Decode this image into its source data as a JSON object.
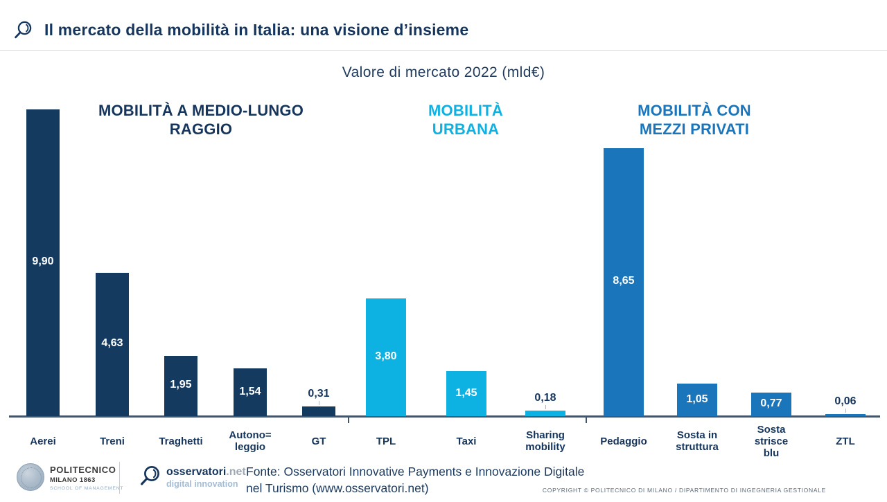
{
  "header": {
    "title": "Il mercato della mobilità in Italia: una visione d’insieme"
  },
  "subtitle": "Valore di mercato 2022 (mld€)",
  "colors": {
    "navy": "#143A5F",
    "cyan": "#0DB2E2",
    "blue": "#1B75BB",
    "title_text": "#16355C",
    "axis": "#44546A"
  },
  "chart_data": {
    "type": "bar",
    "title": "Valore di mercato 2022 (mld€)",
    "unit": "mld€",
    "decimal_separator": ",",
    "ylim": [
      0,
      10
    ],
    "grid": false,
    "groups": [
      {
        "label": "MOBILITÀ A MEDIO-LUNGO RAGGIO",
        "display_label": "MOBILITÀ A MEDIO-LUNGO\nRAGGIO",
        "header_color": "#16355C",
        "color": "#143A5F",
        "bars": [
          {
            "category": "Aerei",
            "display_category": "Aerei",
            "value": 9.9,
            "display_value": "9,90"
          },
          {
            "category": "Treni",
            "display_category": "Treni",
            "value": 4.63,
            "display_value": "4,63"
          },
          {
            "category": "Traghetti",
            "display_category": "Traghetti",
            "value": 1.95,
            "display_value": "1,95"
          },
          {
            "category": "Autonoleggio",
            "display_category": "Autono=\nleggio",
            "value": 1.54,
            "display_value": "1,54"
          },
          {
            "category": "GT",
            "display_category": "GT",
            "value": 0.31,
            "display_value": "0,31"
          }
        ]
      },
      {
        "label": "MOBILITÀ URBANA",
        "display_label": "MOBILITÀ\nURBANA",
        "header_color": "#0DB2E2",
        "color": "#0DB2E2",
        "bars": [
          {
            "category": "TPL",
            "display_category": "TPL",
            "value": 3.8,
            "display_value": "3,80"
          },
          {
            "category": "Taxi",
            "display_category": "Taxi",
            "value": 1.45,
            "display_value": "1,45"
          },
          {
            "category": "Sharing mobility",
            "display_category": "Sharing\nmobility",
            "value": 0.18,
            "display_value": "0,18"
          }
        ]
      },
      {
        "label": "MOBILITÀ CON MEZZI PRIVATI",
        "display_label": "MOBILITÀ CON\nMEZZI PRIVATI",
        "header_color": "#1B75BB",
        "color": "#1B75BB",
        "bars": [
          {
            "category": "Pedaggio",
            "display_category": "Pedaggio",
            "value": 8.65,
            "display_value": "8,65"
          },
          {
            "category": "Sosta in struttura",
            "display_category": "Sosta in\nstruttura",
            "value": 1.05,
            "display_value": "1,05"
          },
          {
            "category": "Sosta strisce blu",
            "display_category": "Sosta\nstrisce\nblu",
            "value": 0.77,
            "display_value": "0,77"
          },
          {
            "category": "ZTL",
            "display_category": "ZTL",
            "value": 0.06,
            "display_value": "0,06"
          }
        ]
      }
    ]
  },
  "footer": {
    "politecnico": {
      "line1": "POLITECNICO",
      "line2": "MILANO 1863",
      "line3": "SCHOOL OF MANAGEMENT"
    },
    "osservatori": {
      "name": "osservatori",
      "tld": ".net",
      "tagline": "digital innovation"
    },
    "fonte_line1": "Fonte: Osservatori Innovative Payments e Innovazione Digitale",
    "fonte_line2": "nel Turismo (www.osservatori.net)",
    "copyright": "COPYRIGHT © POLITECNICO DI MILANO / DIPARTIMENTO DI INGEGNERIA GESTIONALE"
  }
}
